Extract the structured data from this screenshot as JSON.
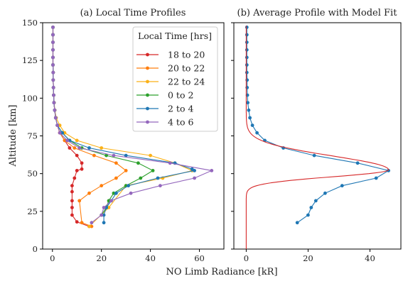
{
  "chart_data": [
    {
      "type": "line",
      "title": "(a) Local Time Profiles",
      "xlabel": "NO Limb Radiance [kR]",
      "ylabel": "Altitude [km]",
      "xlim": [
        -4,
        70
      ],
      "ylim": [
        0,
        150
      ],
      "xticks": [
        0,
        20,
        40,
        60
      ],
      "yticks": [
        0,
        25,
        50,
        75,
        100,
        125,
        150
      ],
      "grid": false,
      "legend_title": "Local Time [hrs]",
      "legend_position": "upper-right",
      "series": [
        {
          "name": "18 to 20",
          "color": "#d62728",
          "points": [
            [
              15,
              15
            ],
            [
              10,
              18
            ],
            [
              8,
              22.5
            ],
            [
              8,
              27.5
            ],
            [
              8,
              32
            ],
            [
              8,
              38
            ],
            [
              8,
              42
            ],
            [
              9,
              47
            ],
            [
              10,
              52
            ],
            [
              12,
              53
            ],
            [
              12,
              57
            ],
            [
              10,
              62
            ],
            [
              7,
              67
            ],
            [
              5,
              72
            ],
            [
              3,
              77
            ],
            [
              2,
              82
            ],
            [
              1.3,
              87
            ],
            [
              0.9,
              92
            ],
            [
              0.6,
              97
            ],
            [
              0.5,
              102
            ],
            [
              0.4,
              107
            ],
            [
              0.3,
              112
            ],
            [
              0.3,
              117
            ],
            [
              0.2,
              122
            ],
            [
              0.2,
              127
            ],
            [
              0.2,
              132
            ],
            [
              0.2,
              137
            ],
            [
              0.2,
              142
            ],
            [
              0.2,
              147
            ]
          ]
        },
        {
          "name": "20 to 22",
          "color": "#ff7f0e",
          "points": [
            [
              16,
              15
            ],
            [
              12,
              17.5
            ],
            [
              11,
              32
            ],
            [
              15,
              37
            ],
            [
              20,
              42
            ],
            [
              26,
              47
            ],
            [
              30,
              52
            ],
            [
              26,
              57
            ],
            [
              17,
              62
            ],
            [
              9,
              67
            ],
            [
              5,
              72
            ],
            [
              3,
              77
            ],
            [
              2,
              82
            ],
            [
              1.3,
              87
            ],
            [
              0.9,
              92
            ],
            [
              0.6,
              97
            ],
            [
              0.5,
              102
            ],
            [
              0.4,
              107
            ],
            [
              0.3,
              112
            ],
            [
              0.3,
              117
            ],
            [
              0.2,
              122
            ],
            [
              0.2,
              127
            ],
            [
              0.2,
              132
            ],
            [
              0.2,
              137
            ],
            [
              0.2,
              142
            ],
            [
              0.2,
              147
            ]
          ]
        },
        {
          "name": "22 to 24",
          "color": "#fbb117",
          "points": [
            [
              15,
              15
            ],
            [
              23,
              27.5
            ],
            [
              30,
              42
            ],
            [
              45,
              47
            ],
            [
              57,
              52
            ],
            [
              50,
              57
            ],
            [
              40,
              62
            ],
            [
              20,
              67
            ],
            [
              10,
              72
            ],
            [
              5,
              77
            ],
            [
              3,
              82
            ],
            [
              1.5,
              87
            ],
            [
              1,
              92
            ],
            [
              0.7,
              97
            ],
            [
              0.5,
              102
            ],
            [
              0.4,
              107
            ],
            [
              0.3,
              112
            ],
            [
              0.3,
              117
            ],
            [
              0.2,
              122
            ],
            [
              0.2,
              127
            ],
            [
              0.2,
              132
            ],
            [
              0.2,
              137
            ],
            [
              0.2,
              142
            ],
            [
              0.2,
              147
            ]
          ]
        },
        {
          "name": "0 to 2",
          "color": "#2ca02c",
          "points": [
            [
              20,
              22.5
            ],
            [
              22,
              27.5
            ],
            [
              23,
              32
            ],
            [
              25,
              37
            ],
            [
              30,
              42
            ],
            [
              36,
              47
            ],
            [
              41,
              52
            ],
            [
              35,
              57
            ],
            [
              22,
              62
            ],
            [
              12,
              67
            ],
            [
              7,
              72
            ],
            [
              4,
              77
            ],
            [
              2,
              82
            ],
            [
              1.3,
              87
            ],
            [
              0.9,
              92
            ],
            [
              0.6,
              97
            ],
            [
              0.5,
              102
            ],
            [
              0.4,
              107
            ],
            [
              0.3,
              112
            ],
            [
              0.3,
              117
            ],
            [
              0.2,
              122
            ],
            [
              0.2,
              127
            ],
            [
              0.2,
              132
            ],
            [
              0.2,
              137
            ],
            [
              0.2,
              142
            ],
            [
              0.2,
              147
            ]
          ]
        },
        {
          "name": "2 to 4",
          "color": "#1f77b4",
          "points": [
            [
              21,
              17.5
            ],
            [
              21,
              22.5
            ],
            [
              22,
              27.5
            ],
            [
              24,
              32
            ],
            [
              26,
              37
            ],
            [
              31,
              42
            ],
            [
              43,
              47
            ],
            [
              58,
              52
            ],
            [
              57,
              53
            ],
            [
              50,
              57
            ],
            [
              30,
              62
            ],
            [
              15,
              67
            ],
            [
              7,
              72
            ],
            [
              4,
              77
            ],
            [
              2,
              82
            ],
            [
              1.3,
              87
            ],
            [
              0.9,
              92
            ],
            [
              0.6,
              97
            ],
            [
              0.5,
              102
            ],
            [
              0.4,
              107
            ],
            [
              0.3,
              112
            ],
            [
              0.3,
              117
            ],
            [
              0.2,
              122
            ],
            [
              0.2,
              127
            ],
            [
              0.2,
              132
            ],
            [
              0.2,
              137
            ],
            [
              0.2,
              142
            ],
            [
              0.2,
              147
            ]
          ]
        },
        {
          "name": "4 to 6",
          "color": "#9467bd",
          "points": [
            [
              16,
              17.5
            ],
            [
              20,
              22.5
            ],
            [
              21,
              27.5
            ],
            [
              24,
              32
            ],
            [
              32,
              37
            ],
            [
              44,
              42
            ],
            [
              58,
              47
            ],
            [
              65,
              52
            ],
            [
              48,
              57
            ],
            [
              25,
              62
            ],
            [
              11,
              67
            ],
            [
              6,
              72
            ],
            [
              3,
              77
            ],
            [
              2,
              82
            ],
            [
              1.3,
              87
            ],
            [
              0.9,
              92
            ],
            [
              0.6,
              97
            ],
            [
              0.5,
              102
            ],
            [
              0.4,
              107
            ],
            [
              0.3,
              112
            ],
            [
              0.3,
              117
            ],
            [
              0.2,
              122
            ],
            [
              0.2,
              127
            ],
            [
              0.2,
              132
            ],
            [
              0.2,
              137
            ],
            [
              0.2,
              142
            ],
            [
              0.2,
              147
            ]
          ]
        }
      ]
    },
    {
      "type": "line",
      "title": "(b) Average Profile with Model Fit",
      "xlabel": "NO Limb Radiance [kR]",
      "ylabel": "",
      "xlim": [
        -4,
        50
      ],
      "ylim": [
        0,
        150
      ],
      "xticks": [
        0,
        20,
        40
      ],
      "yticks": [
        0,
        25,
        50,
        75,
        100,
        125,
        150
      ],
      "grid": false,
      "series": [
        {
          "color": "#1f77b4",
          "markers": true,
          "points": [
            [
              16.5,
              17.5
            ],
            [
              20,
              22.5
            ],
            [
              21,
              27.5
            ],
            [
              22.5,
              32
            ],
            [
              25.5,
              37
            ],
            [
              31,
              42
            ],
            [
              42,
              47
            ],
            [
              46,
              52
            ],
            [
              36,
              57
            ],
            [
              22,
              62
            ],
            [
              12,
              67
            ],
            [
              6,
              72
            ],
            [
              3.5,
              77
            ],
            [
              2,
              82
            ],
            [
              1.2,
              87
            ],
            [
              0.8,
              92
            ],
            [
              0.5,
              97
            ],
            [
              0.4,
              102
            ],
            [
              0.3,
              107
            ],
            [
              0.3,
              112
            ],
            [
              0.2,
              117
            ],
            [
              0.2,
              122
            ],
            [
              0.2,
              127
            ],
            [
              0.2,
              132
            ],
            [
              0.2,
              137
            ],
            [
              0.2,
              142
            ],
            [
              0.2,
              147
            ]
          ]
        },
        {
          "color": "#d62728",
          "markers": false,
          "model_fit": {
            "peak_value": 46,
            "peak_altitude": 52.5,
            "width_below": 6.5,
            "width_above": 13
          }
        }
      ]
    }
  ]
}
